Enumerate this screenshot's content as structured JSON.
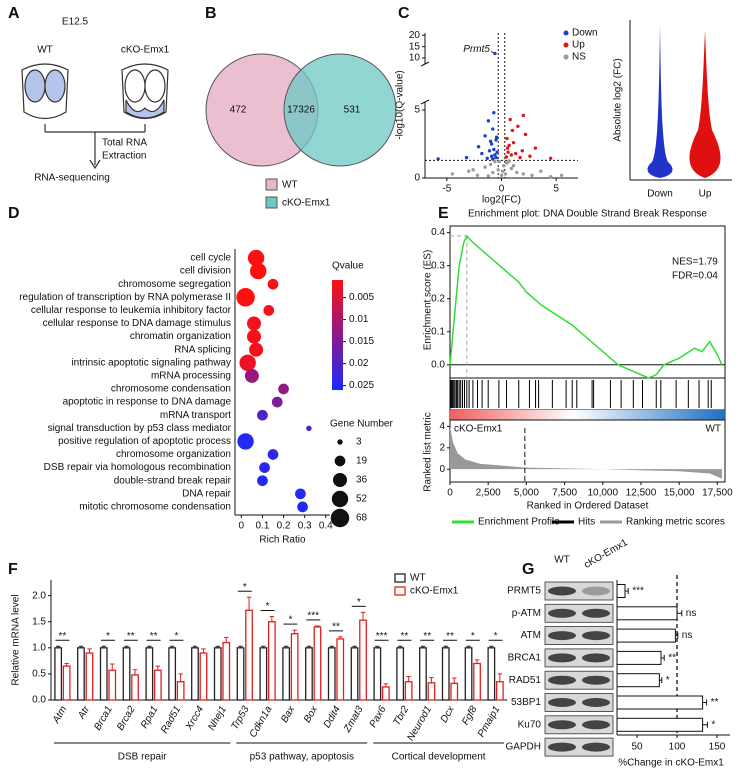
{
  "panel_labels": [
    "A",
    "B",
    "C",
    "D",
    "E",
    "F",
    "G"
  ],
  "schematic": {
    "stage": "E12.5",
    "groups": [
      "WT",
      "cKO-Emx1"
    ],
    "step": [
      "Total RNA",
      "Extraction"
    ],
    "result": "RNA-sequencing"
  },
  "venn": {
    "sets": [
      {
        "name": "WT",
        "color": "#e8b4c9"
      },
      {
        "name": "cKO-Emx1",
        "color": "#6ec8c6"
      }
    ],
    "values": [
      472,
      17326,
      531
    ]
  },
  "chart_data": [
    {
      "type": "scatter",
      "x_label": "log2(FC)",
      "y_label": "-log10(Q-value)",
      "xlim": [
        -7,
        7
      ],
      "xticks": [
        -5,
        0,
        5
      ],
      "ylim": [
        0,
        21
      ],
      "yticks": [
        0,
        5,
        10,
        15,
        20
      ],
      "axis_break": [
        5,
        10
      ],
      "hlines": [
        1.3
      ],
      "vlines": [
        -0.3,
        0.3
      ],
      "annotation": "Prmt5",
      "series": [
        {
          "name": "Down",
          "color": "#1f3fd0",
          "x": [
            -0.6,
            -1.2,
            -0.8,
            -1.5,
            -0.5,
            -0.9,
            -2.1,
            -0.7,
            -1.1,
            -0.4,
            -1.8,
            -0.6,
            -0.9,
            -3.2,
            -0.5,
            -1.3,
            -0.8,
            -0.45,
            -1.0,
            -0.7,
            -5.8
          ],
          "y": [
            12,
            4.2,
            3.6,
            3.1,
            2.8,
            2.5,
            2.3,
            2.1,
            2.0,
            1.9,
            1.8,
            1.7,
            1.6,
            1.5,
            1.5,
            1.45,
            1.4,
            3.0,
            2.7,
            4.8,
            1.4
          ]
        },
        {
          "name": "Up",
          "color": "#e0141e",
          "x": [
            0.8,
            1.5,
            2.2,
            0.5,
            1.1,
            0.7,
            3.1,
            1.9,
            0.6,
            1.3,
            0.9,
            2.6,
            0.45,
            1.7,
            4.5,
            1.0,
            0.55,
            2.0
          ],
          "y": [
            4.3,
            3.8,
            3.2,
            2.9,
            2.6,
            2.4,
            2.2,
            2.0,
            1.9,
            1.8,
            1.7,
            1.6,
            1.55,
            1.5,
            1.45,
            3.5,
            2.2,
            4.6
          ]
        },
        {
          "name": "NS",
          "color": "#9a9a9a",
          "x": [
            -4.5,
            -3,
            -2.2,
            -1.5,
            -1,
            -0.6,
            -0.3,
            0,
            0.2,
            0.5,
            0.9,
            1.4,
            2,
            2.8,
            3.6,
            4.5,
            5.5,
            -0.2,
            0.1,
            0.35,
            -0.8,
            1.1,
            -2.6,
            0.7,
            -1.2
          ],
          "y": [
            0.3,
            0.5,
            0.2,
            0.8,
            1.0,
            1.2,
            0.6,
            0.2,
            0.9,
            1.1,
            0.7,
            0.4,
            0.3,
            0.2,
            0.5,
            0.1,
            0.2,
            1.2,
            0.5,
            0.3,
            0.4,
            0.9,
            0.6,
            1.25,
            0.15
          ]
        }
      ]
    },
    {
      "type": "violin",
      "y_label": "Absolute log2 (FC)",
      "categories": [
        "Down",
        "Up"
      ],
      "colors": [
        "#2233cc",
        "#e01010"
      ]
    },
    {
      "type": "dot",
      "x_label": "Rich Ratio",
      "xlim": [
        -0.03,
        0.42
      ],
      "xticks": [
        0,
        0.1,
        0.2,
        0.3,
        0.4
      ],
      "categories": [
        "cell cycle",
        "cell division",
        "chromosome segregation",
        "regulation of transcription by RNA polymerase II",
        "cellular response to leukemia inhibitory factor",
        "cellular response to DNA damage stimulus",
        "chromatin organization",
        "RNA splicing",
        "intrinsic apoptotic signaling pathway",
        "mRNA processing",
        "chromosome condensation",
        "apoptotic in response to DNA damage",
        "mRNA transport",
        "signal transduction by p53 class mediator",
        "positive regulation of apoptotic process",
        "chromosome organization",
        "DSB repair via homologous recombination",
        "double-strand break repair",
        "DNA repair",
        "mitotic chromosome condensation"
      ],
      "values": [
        0.07,
        0.08,
        0.15,
        0.02,
        0.13,
        0.06,
        0.06,
        0.07,
        0.03,
        0.05,
        0.2,
        0.17,
        0.1,
        0.32,
        0.02,
        0.15,
        0.11,
        0.1,
        0.28,
        0.29
      ],
      "qvalues": [
        0.001,
        0.001,
        0.002,
        0.001,
        0.002,
        0.002,
        0.002,
        0.002,
        0.003,
        0.012,
        0.013,
        0.015,
        0.02,
        0.022,
        0.025,
        0.024,
        0.024,
        0.025,
        0.025,
        0.025
      ],
      "sizes": [
        52,
        52,
        19,
        68,
        19,
        36,
        36,
        36,
        52,
        36,
        19,
        19,
        19,
        3,
        52,
        19,
        19,
        19,
        19,
        19
      ],
      "color_title": "Qvalue",
      "clim": [
        0.001,
        0.026
      ],
      "colormap": [
        "#ff1010",
        "#8a1a8a",
        "#1a2aff"
      ],
      "cticks": [
        0.005,
        0.01,
        0.015,
        0.02,
        0.025
      ],
      "size_title": "Gene Number",
      "size_ticks": [
        3,
        19,
        36,
        52,
        68
      ]
    },
    {
      "type": "gsea",
      "title": "Enrichment plot: DNA Double Strand Break Response",
      "y_label": "Enrichment score (ES)",
      "metric_label": "Ranked list metric",
      "x_label": "Ranked in Ordered Dataset",
      "stats": [
        "NES=1.79",
        "FDR=0.04"
      ],
      "heat_labels": [
        "cKO-Emx1",
        "WT"
      ],
      "xlim": [
        0,
        18000
      ],
      "xticks": [
        0,
        {
          "value": 2500,
          "label": "2,500"
        },
        {
          "value": 5000,
          "label": "5,000"
        },
        {
          "value": 7500,
          "label": "7,500"
        },
        {
          "value": 10000,
          "label": "10,000"
        },
        {
          "value": 12500,
          "label": "12,500"
        },
        {
          "value": 15000,
          "label": "15,000"
        },
        {
          "value": 17500,
          "label": "17,500"
        }
      ],
      "ylim": [
        -0.04,
        0.42
      ],
      "yticks": [
        {
          "value": 0,
          "label": "0.0"
        },
        0.1,
        0.2,
        0.3,
        0.4
      ],
      "metric_ylim": [
        -1.2,
        4.6
      ],
      "metric_yticks": [
        0,
        2,
        4
      ],
      "x": [
        0,
        300,
        600,
        900,
        1100,
        1500,
        2000,
        2500,
        3000,
        3500,
        4000,
        4500,
        5000,
        5500,
        6000,
        7000,
        8000,
        9000,
        10000,
        11000,
        12000,
        13000,
        13500,
        14000,
        15000,
        16000,
        16500,
        17000,
        17500,
        17800
      ],
      "values": [
        0,
        0.15,
        0.3,
        0.37,
        0.39,
        0.37,
        0.35,
        0.33,
        0.31,
        0.29,
        0.27,
        0.25,
        0.22,
        0.2,
        0.18,
        0.15,
        0.12,
        0.08,
        0.04,
        0.0,
        -0.02,
        -0.04,
        -0.03,
        0.0,
        0.02,
        0.05,
        0.04,
        0.07,
        0.03,
        0.0
      ],
      "hits": [
        60,
        120,
        180,
        250,
        330,
        420,
        500,
        600,
        700,
        820,
        950,
        1100,
        1250,
        1500,
        1800,
        2100,
        2500,
        3200,
        3700,
        4500,
        5200,
        5600,
        5800,
        6700,
        7600,
        8000,
        8300,
        9300,
        9400,
        10500,
        11200,
        12000,
        12600,
        13500,
        13800,
        14800,
        15600,
        16300,
        16900,
        17100
      ],
      "metric_x": [
        0,
        200,
        500,
        1000,
        2000,
        5000,
        10000,
        15000,
        17000,
        17800
      ],
      "metric_values": [
        4,
        2.5,
        1.5,
        0.9,
        0.5,
        0.15,
        0,
        -0.2,
        -0.4,
        -0.9
      ],
      "zero_cross": 4900,
      "legend": [
        {
          "name": "Enrichment Profile",
          "color": "#33dd33"
        },
        {
          "name": "Hits",
          "color": "#000000"
        },
        {
          "name": "Ranking metric scores",
          "color": "#999999"
        }
      ]
    },
    {
      "type": "grouped_bar",
      "y_label": "Relative mRNA level",
      "ylim": [
        0,
        2.3
      ],
      "yticks": [
        {
          "value": 0,
          "label": "0.0"
        },
        0.5,
        {
          "value": 1,
          "label": "1.0"
        },
        1.5,
        {
          "value": 2,
          "label": "2.0"
        }
      ],
      "categories": [
        "Atm",
        "Atr",
        "Brca1",
        "Brca2",
        "Rpa1",
        "Rad51",
        "Xrcc4",
        "Nhej1",
        "Trp53",
        "Cdkn1a",
        "Bax",
        "Box",
        "Ddit4",
        "Zmat3",
        "Pax6",
        "Tbr2",
        "Neurod1",
        "Dcx",
        "Fgf8",
        "Pmaip1"
      ],
      "series": [
        {
          "name": "WT",
          "color": "#222222",
          "values": [
            1,
            1,
            1,
            1,
            1,
            1,
            1,
            1,
            1,
            1,
            1,
            1,
            1,
            1,
            1,
            1,
            1,
            1,
            1,
            1
          ],
          "errors": [
            0.03,
            0.03,
            0.03,
            0.03,
            0.03,
            0.03,
            0.03,
            0.03,
            0.03,
            0.03,
            0.03,
            0.03,
            0.03,
            0.03,
            0.03,
            0.03,
            0.03,
            0.03,
            0.03,
            0.03
          ]
        },
        {
          "name": "cKO-Emx1",
          "color": "#e02020",
          "values": [
            0.65,
            0.9,
            0.57,
            0.48,
            0.57,
            0.35,
            0.9,
            1.1,
            1.72,
            1.5,
            1.27,
            1.4,
            1.17,
            1.53,
            0.25,
            0.35,
            0.33,
            0.32,
            0.7,
            0.35
          ],
          "errors": [
            0.05,
            0.08,
            0.12,
            0.1,
            0.08,
            0.15,
            0.08,
            0.1,
            0.25,
            0.1,
            0.07,
            0.02,
            0.04,
            0.15,
            0.06,
            0.1,
            0.1,
            0.1,
            0.07,
            0.15
          ]
        }
      ],
      "significance": [
        "**",
        null,
        "*",
        "**",
        "**",
        "*",
        null,
        null,
        "*",
        "*",
        "*",
        "***",
        "**",
        "*",
        "***",
        "**",
        "**",
        "**",
        "*",
        "*"
      ],
      "groups": [
        "DSB repair",
        "p53 pathway, apoptosis",
        "Cortical development"
      ]
    },
    {
      "type": "hbar",
      "x_label": "%Change in cKO-Emx1",
      "xlim": [
        25,
        160
      ],
      "xticks": [
        50,
        100,
        150
      ],
      "refline": 100,
      "values": [
        35,
        100,
        98,
        80,
        78,
        132,
        132
      ],
      "errors": [
        4,
        6,
        3,
        4,
        3,
        5,
        6
      ],
      "significance": [
        "***",
        "ns",
        "ns",
        "**",
        "*",
        "**",
        "*"
      ]
    }
  ],
  "blot": {
    "columns": [
      "WT",
      "cKO-Emx1"
    ],
    "rows": [
      "PRMT5",
      "p-ATM",
      "ATM",
      "BRCA1",
      "RAD51",
      "53BP1",
      "Ku70",
      "GAPDH"
    ]
  }
}
